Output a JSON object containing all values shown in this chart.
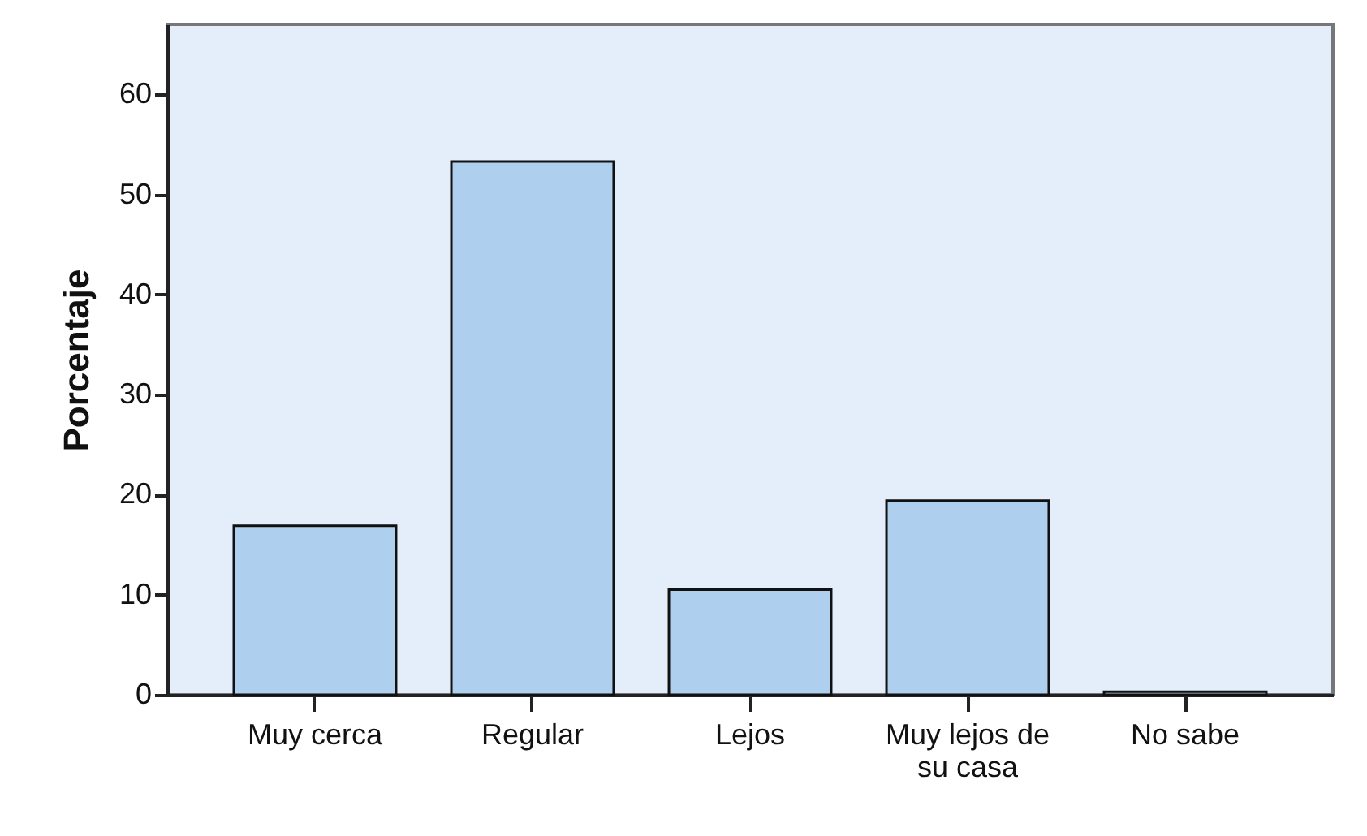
{
  "chart_data": {
    "type": "bar",
    "ylabel": "Porcentaje",
    "categories": [
      "Muy cerca",
      "Regular",
      "Lejos",
      "Muy lejos de su casa",
      "No sabe"
    ],
    "values": [
      16.9,
      53.3,
      10.5,
      19.4,
      0.3
    ],
    "color": "#aecfed",
    "ylim": [
      0,
      67
    ],
    "yticks": [
      0,
      10,
      20,
      30,
      40,
      50,
      60
    ],
    "grid": false
  }
}
